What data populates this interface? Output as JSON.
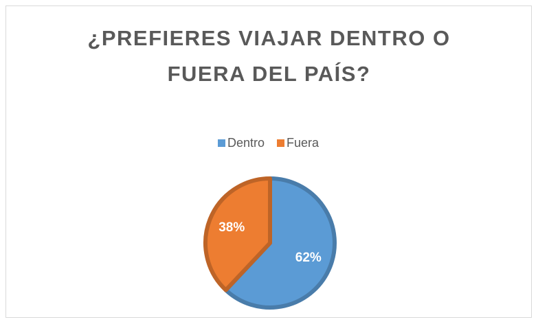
{
  "chart_data": {
    "type": "pie",
    "title": "¿PREFIERES VIAJAR DENTRO O FUERA DEL PAÍS?",
    "categories": [
      "Dentro",
      "Fuera"
    ],
    "values": [
      62,
      38
    ],
    "value_labels": [
      "62%",
      "38%"
    ],
    "colors": [
      "#5b9bd5",
      "#ed7d31"
    ],
    "legend": "top"
  }
}
